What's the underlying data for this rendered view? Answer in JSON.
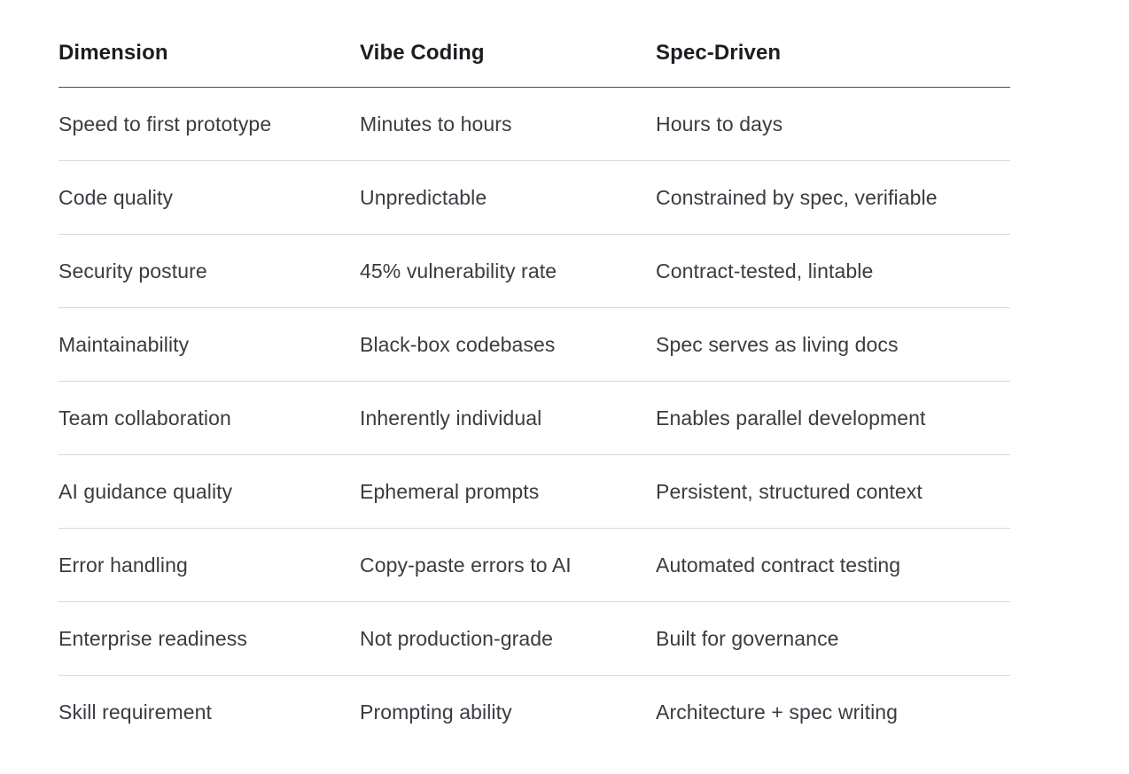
{
  "table": {
    "headers": [
      "Dimension",
      "Vibe Coding",
      "Spec-Driven"
    ],
    "rows": [
      {
        "cells": [
          "Speed to first prototype",
          "Minutes to hours",
          "Hours to days"
        ]
      },
      {
        "cells": [
          "Code quality",
          "Unpredictable",
          "Constrained by spec, verifiable"
        ]
      },
      {
        "cells": [
          "Security posture",
          "45% vulnerability rate",
          "Contract-tested, lintable"
        ]
      },
      {
        "cells": [
          "Maintainability",
          "Black-box codebases",
          "Spec serves as living docs"
        ]
      },
      {
        "cells": [
          "Team collaboration",
          "Inherently individual",
          "Enables parallel development"
        ]
      },
      {
        "cells": [
          "AI guidance quality",
          "Ephemeral prompts",
          "Persistent, structured context"
        ]
      },
      {
        "cells": [
          "Error handling",
          "Copy-paste errors to AI",
          "Automated contract testing"
        ]
      },
      {
        "cells": [
          "Enterprise readiness",
          "Not production-grade",
          "Built for governance"
        ]
      },
      {
        "cells": [
          "Skill requirement",
          "Prompting ability",
          "Architecture + spec writing"
        ]
      }
    ]
  },
  "colors": {
    "background": "#ffffff",
    "header_text": "#1b1d21",
    "body_text": "#393c41",
    "header_border": "#4a4d52",
    "row_border": "#d8d8d8"
  }
}
